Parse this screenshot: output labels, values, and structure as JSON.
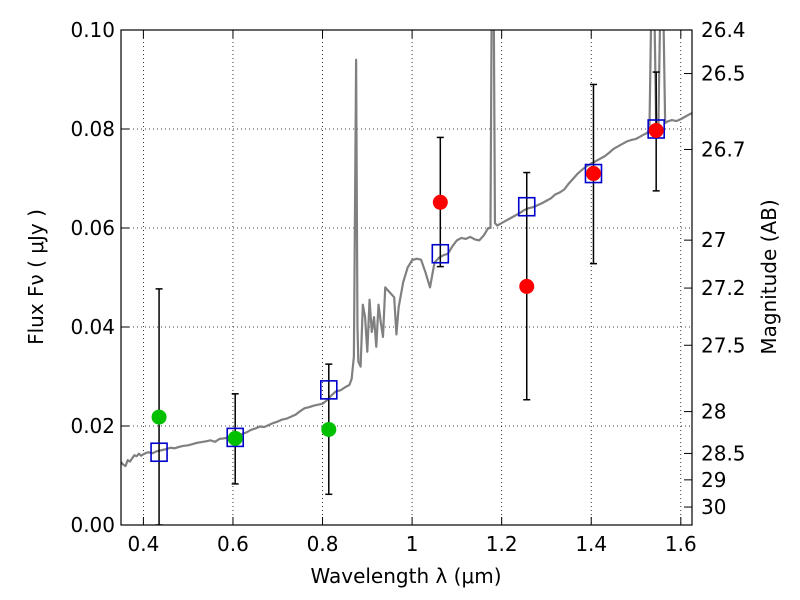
{
  "chart_data": {
    "type": "scatter",
    "xlabel": "Wavelength  λ (μm)",
    "ylabel": "Flux  Fν  ( μJy )",
    "y2label": "Magnitude (AB)",
    "xlim": [
      0.35,
      1.625
    ],
    "ylim": [
      0.0,
      0.1
    ],
    "grid": true,
    "x_ticks": [
      {
        "value": 0.4,
        "label": "0.4"
      },
      {
        "value": 0.6,
        "label": "0.6"
      },
      {
        "value": 0.8,
        "label": "0.8"
      },
      {
        "value": 1.0,
        "label": "1"
      },
      {
        "value": 1.2,
        "label": "1.2"
      },
      {
        "value": 1.4,
        "label": "1.4"
      },
      {
        "value": 1.6,
        "label": "1.6"
      }
    ],
    "y_ticks": [
      {
        "value": 0.0,
        "label": "0.00"
      },
      {
        "value": 0.02,
        "label": "0.02"
      },
      {
        "value": 0.04,
        "label": "0.04"
      },
      {
        "value": 0.06,
        "label": "0.06"
      },
      {
        "value": 0.08,
        "label": "0.08"
      },
      {
        "value": 0.1,
        "label": "0.10"
      }
    ],
    "magnitude_ticks": [
      {
        "mag": 26.4,
        "label": "26.4"
      },
      {
        "mag": 26.5,
        "label": "26.5"
      },
      {
        "mag": 26.7,
        "label": "26.7"
      },
      {
        "mag": 27.0,
        "label": "27"
      },
      {
        "mag": 27.2,
        "label": "27.2"
      },
      {
        "mag": 27.5,
        "label": "27.5"
      },
      {
        "mag": 28.0,
        "label": "28"
      },
      {
        "mag": 28.5,
        "label": "28.5"
      },
      {
        "mag": 29.0,
        "label": "29"
      },
      {
        "mag": 30.0,
        "label": "30"
      }
    ],
    "series": [
      {
        "style": "line",
        "color": "#808080",
        "points": [
          [
            0.35,
            0.0127
          ],
          [
            0.355,
            0.0122
          ],
          [
            0.36,
            0.0119
          ],
          [
            0.365,
            0.0131
          ],
          [
            0.37,
            0.0128
          ],
          [
            0.375,
            0.0135
          ],
          [
            0.38,
            0.0141
          ],
          [
            0.385,
            0.0139
          ],
          [
            0.39,
            0.0144
          ],
          [
            0.395,
            0.014
          ],
          [
            0.4,
            0.0143
          ],
          [
            0.41,
            0.0147
          ],
          [
            0.42,
            0.0145
          ],
          [
            0.43,
            0.0149
          ],
          [
            0.44,
            0.0151
          ],
          [
            0.45,
            0.0153
          ],
          [
            0.46,
            0.0156
          ],
          [
            0.47,
            0.0155
          ],
          [
            0.48,
            0.0158
          ],
          [
            0.49,
            0.016
          ],
          [
            0.5,
            0.0161
          ],
          [
            0.52,
            0.0166
          ],
          [
            0.54,
            0.0169
          ],
          [
            0.55,
            0.0171
          ],
          [
            0.56,
            0.0168
          ],
          [
            0.57,
            0.0174
          ],
          [
            0.58,
            0.0175
          ],
          [
            0.6,
            0.0179
          ],
          [
            0.62,
            0.0184
          ],
          [
            0.63,
            0.0187
          ],
          [
            0.64,
            0.0192
          ],
          [
            0.65,
            0.0195
          ],
          [
            0.66,
            0.0199
          ],
          [
            0.67,
            0.0198
          ],
          [
            0.68,
            0.0202
          ],
          [
            0.69,
            0.0206
          ],
          [
            0.7,
            0.0209
          ],
          [
            0.71,
            0.0213
          ],
          [
            0.72,
            0.0215
          ],
          [
            0.73,
            0.0219
          ],
          [
            0.74,
            0.0223
          ],
          [
            0.75,
            0.023
          ],
          [
            0.76,
            0.0236
          ],
          [
            0.77,
            0.0238
          ],
          [
            0.78,
            0.0241
          ],
          [
            0.79,
            0.0243
          ],
          [
            0.8,
            0.0245
          ],
          [
            0.81,
            0.0252
          ],
          [
            0.82,
            0.0262
          ],
          [
            0.83,
            0.027
          ],
          [
            0.84,
            0.0272
          ],
          [
            0.85,
            0.0278
          ],
          [
            0.86,
            0.0283
          ],
          [
            0.865,
            0.0295
          ],
          [
            0.87,
            0.034
          ],
          [
            0.875,
            0.094
          ],
          [
            0.878,
            0.04
          ],
          [
            0.88,
            0.033
          ],
          [
            0.885,
            0.032
          ],
          [
            0.89,
            0.0445
          ],
          [
            0.895,
            0.042
          ],
          [
            0.9,
            0.035
          ],
          [
            0.905,
            0.0455
          ],
          [
            0.91,
            0.039
          ],
          [
            0.915,
            0.042
          ],
          [
            0.92,
            0.036
          ],
          [
            0.925,
            0.0445
          ],
          [
            0.93,
            0.041
          ],
          [
            0.935,
            0.038
          ],
          [
            0.94,
            0.048
          ],
          [
            0.95,
            0.047
          ],
          [
            0.96,
            0.046
          ],
          [
            0.965,
            0.0385
          ],
          [
            0.97,
            0.044
          ],
          [
            0.98,
            0.049
          ],
          [
            0.99,
            0.052
          ],
          [
            1.0,
            0.0535
          ],
          [
            1.01,
            0.0538
          ],
          [
            1.02,
            0.0536
          ],
          [
            1.03,
            0.051
          ],
          [
            1.04,
            0.048
          ],
          [
            1.05,
            0.053
          ],
          [
            1.06,
            0.054
          ],
          [
            1.07,
            0.0545
          ],
          [
            1.08,
            0.0548
          ],
          [
            1.09,
            0.0563
          ],
          [
            1.1,
            0.0575
          ],
          [
            1.11,
            0.058
          ],
          [
            1.12,
            0.0578
          ],
          [
            1.13,
            0.0582
          ],
          [
            1.14,
            0.0577
          ],
          [
            1.15,
            0.0575
          ],
          [
            1.16,
            0.0585
          ],
          [
            1.17,
            0.06
          ],
          [
            1.175,
            0.06
          ],
          [
            1.178,
            0.11
          ],
          [
            1.182,
            0.11
          ],
          [
            1.185,
            0.061
          ],
          [
            1.19,
            0.0605
          ],
          [
            1.2,
            0.061
          ],
          [
            1.21,
            0.0615
          ],
          [
            1.22,
            0.062
          ],
          [
            1.23,
            0.0625
          ],
          [
            1.24,
            0.063
          ],
          [
            1.25,
            0.0636
          ],
          [
            1.26,
            0.064
          ],
          [
            1.27,
            0.0642
          ],
          [
            1.28,
            0.0646
          ],
          [
            1.29,
            0.065
          ],
          [
            1.3,
            0.0655
          ],
          [
            1.31,
            0.066
          ],
          [
            1.32,
            0.0668
          ],
          [
            1.33,
            0.0672
          ],
          [
            1.34,
            0.0678
          ],
          [
            1.35,
            0.069
          ],
          [
            1.36,
            0.07
          ],
          [
            1.37,
            0.071
          ],
          [
            1.38,
            0.0718
          ],
          [
            1.39,
            0.0725
          ],
          [
            1.4,
            0.073
          ],
          [
            1.41,
            0.0735
          ],
          [
            1.42,
            0.074
          ],
          [
            1.43,
            0.0745
          ],
          [
            1.44,
            0.0752
          ],
          [
            1.45,
            0.076
          ],
          [
            1.46,
            0.0765
          ],
          [
            1.47,
            0.077
          ],
          [
            1.48,
            0.0775
          ],
          [
            1.49,
            0.0778
          ],
          [
            1.5,
            0.078
          ],
          [
            1.51,
            0.0785
          ],
          [
            1.52,
            0.079
          ],
          [
            1.525,
            0.0792
          ],
          [
            1.53,
            0.08
          ],
          [
            1.535,
            0.11
          ],
          [
            1.54,
            0.11
          ],
          [
            1.545,
            0.081
          ],
          [
            1.55,
            0.0808
          ],
          [
            1.555,
            0.11
          ],
          [
            1.56,
            0.11
          ],
          [
            1.565,
            0.0812
          ],
          [
            1.57,
            0.0815
          ],
          [
            1.58,
            0.0818
          ],
          [
            1.59,
            0.0816
          ],
          [
            1.6,
            0.082
          ],
          [
            1.61,
            0.0825
          ],
          [
            1.62,
            0.083
          ],
          [
            1.625,
            0.0832
          ]
        ]
      },
      {
        "style": "errorbar",
        "color": "#000000",
        "points": [
          {
            "x": 0.435,
            "ylo": 0.0,
            "yhi": 0.0477
          },
          {
            "x": 0.605,
            "ylo": 0.0083,
            "yhi": 0.0265
          },
          {
            "x": 0.814,
            "ylo": 0.0062,
            "yhi": 0.0325
          },
          {
            "x": 1.063,
            "ylo": 0.0522,
            "yhi": 0.0783
          },
          {
            "x": 1.256,
            "ylo": 0.0253,
            "yhi": 0.0712
          },
          {
            "x": 1.405,
            "ylo": 0.0528,
            "yhi": 0.089
          },
          {
            "x": 1.545,
            "ylo": 0.0675,
            "yhi": 0.0915
          }
        ]
      },
      {
        "style": "square",
        "color": "#0000cc",
        "points": [
          [
            0.435,
            0.0147
          ],
          [
            0.605,
            0.0177
          ],
          [
            0.814,
            0.0273
          ],
          [
            1.063,
            0.0548
          ],
          [
            1.256,
            0.0643
          ],
          [
            1.405,
            0.071
          ],
          [
            1.545,
            0.08
          ]
        ]
      },
      {
        "style": "circle",
        "color": "#00c000",
        "points": [
          [
            0.435,
            0.0218
          ],
          [
            0.605,
            0.0175
          ],
          [
            0.814,
            0.0193
          ]
        ]
      },
      {
        "style": "circle",
        "color": "#ff0000",
        "points": [
          [
            1.063,
            0.0652
          ],
          [
            1.256,
            0.0482
          ],
          [
            1.405,
            0.071
          ],
          [
            1.545,
            0.0797
          ]
        ]
      }
    ]
  }
}
